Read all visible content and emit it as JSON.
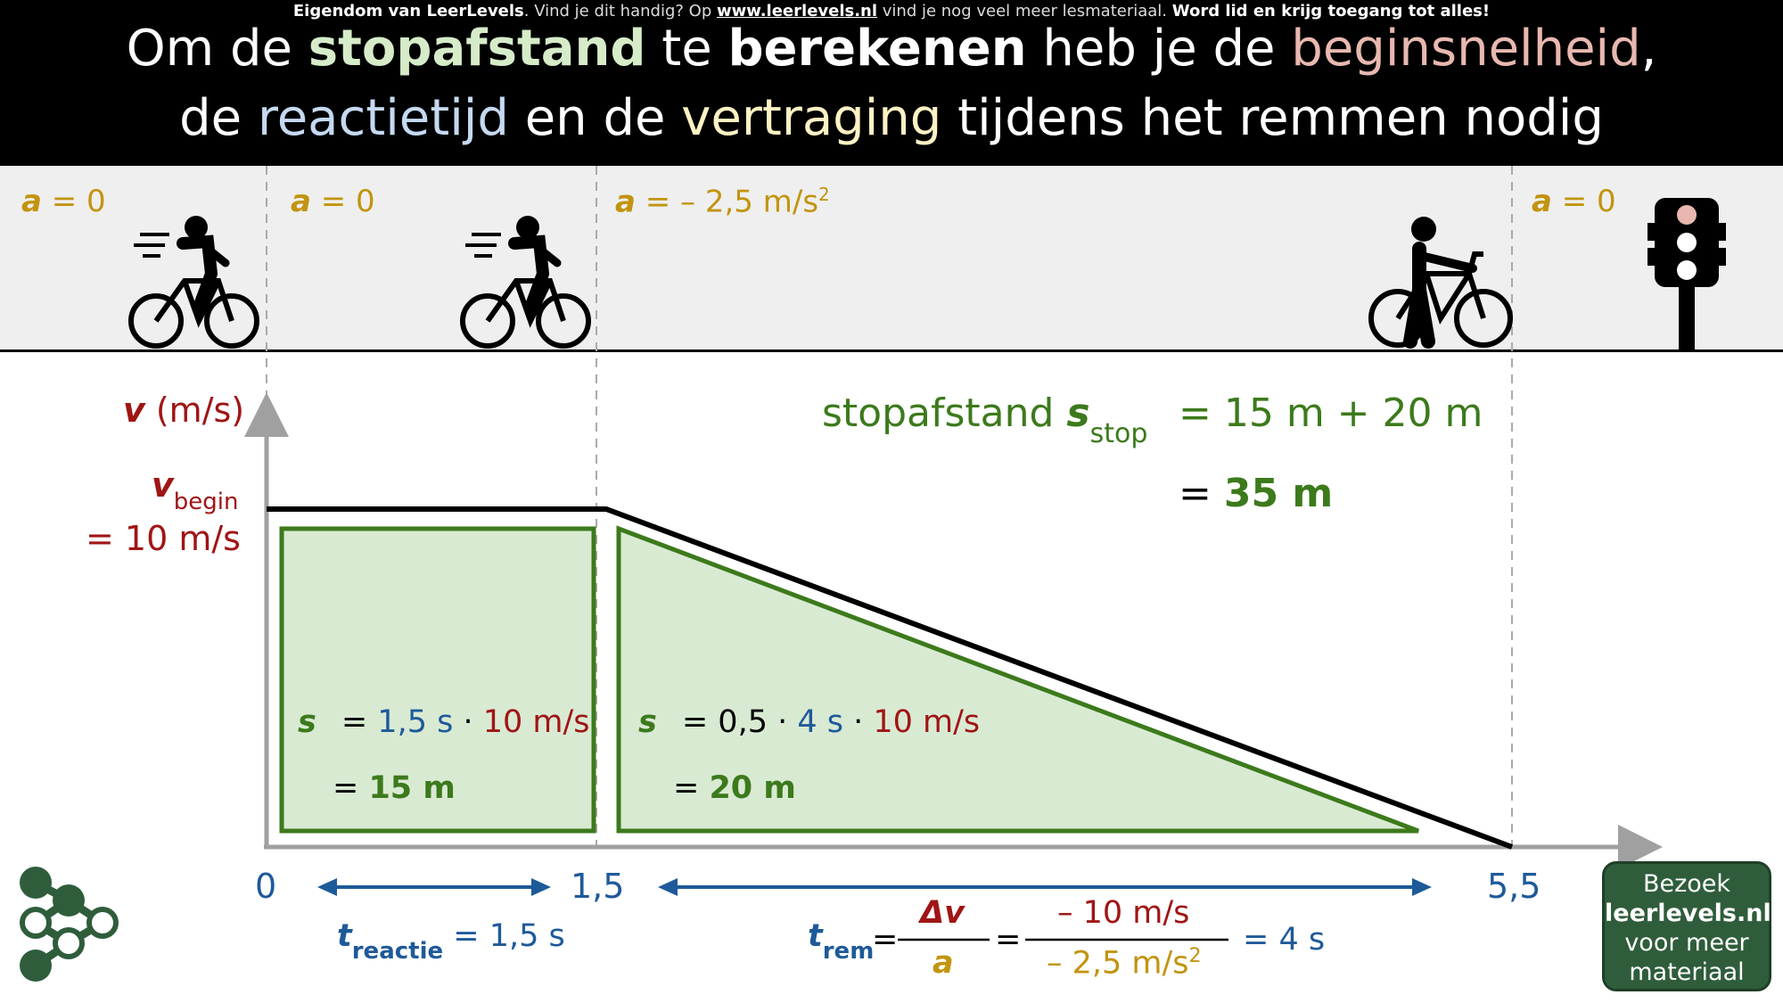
{
  "header": {
    "note_brand": "Eigendom van LeerLevels",
    "note_mid": ". Vind je dit handig? Op ",
    "note_url": "www.leerlevels.nl",
    "note_after": " vind je nog veel meer lesmateriaal. ",
    "note_cta": "Word lid en krijg toegang tot alles!",
    "line1": [
      "Om de ",
      "stopafstand",
      " te ",
      "berekenen",
      " heb je de ",
      "beginsnelheid",
      ","
    ],
    "line2": [
      "de ",
      "reactietijd",
      " en de ",
      "vertraging",
      " tijdens het remmen nodig"
    ]
  },
  "strip": {
    "acc_symbol": "a",
    "acc1": " = 0",
    "acc2": " = 0",
    "acc3": " = – 2,5 m/s",
    "acc3_exp": "2",
    "acc4": " = 0"
  },
  "graph": {
    "y_axis_symbol": "v",
    "y_axis_unit": " (m/s)",
    "v_begin_symbol": "v",
    "v_begin_sub": "begin",
    "v_begin_value": "= 10 m/s",
    "x_ticks": [
      "0",
      "1,5",
      "5,5"
    ],
    "stop_label": "stopafstand ",
    "stop_symbol": "s",
    "stop_sub": "stop",
    "stop_eq1": "= 15 m + 20 m",
    "stop_eq2_pre": "= ",
    "stop_eq2": "35 m",
    "rect_s": "s",
    "rect_eq_pre": "= ",
    "rect_t": "1,5 s",
    "rect_dot": " · ",
    "rect_v": "10 m/s",
    "rect_result_pre": "= ",
    "rect_result": "15 m",
    "tri_s": "s",
    "tri_eq_pre": "= 0,5 · ",
    "tri_t": "4 s",
    "tri_dot": " · ",
    "tri_v": "10 m/s",
    "tri_result_pre": "= ",
    "tri_result": "20 m",
    "t_reactie_symbol": "t",
    "t_reactie_sub": "reactie",
    "t_reactie_value": " = 1,5 s",
    "t_rem_symbol": "t",
    "t_rem_sub": "rem",
    "eq_sign": "=",
    "frac1_num": "Δv",
    "frac1_den": "a",
    "frac2_num": "– 10 m/s",
    "frac2_den": "– 2,5 m/s",
    "frac2_den_exp": "2",
    "t_rem_result": "= 4 s"
  },
  "chart_data": {
    "type": "line",
    "x": [
      0,
      1.5,
      5.5
    ],
    "series": [
      {
        "values": [
          10,
          10,
          0
        ]
      }
    ],
    "xlabel": "",
    "ylabel": "v (m/s)"
  },
  "visit": {
    "line1": "Bezoek",
    "line2": "leerlevels.nl",
    "line3": "voor meer",
    "line4": "materiaal"
  },
  "colors": {
    "green": "#3c7a1c",
    "area_fill": "#d9ead3",
    "red": "#a01515",
    "blue": "#1e5a99",
    "gold": "#c29410",
    "brand": "#2f5d3b"
  }
}
